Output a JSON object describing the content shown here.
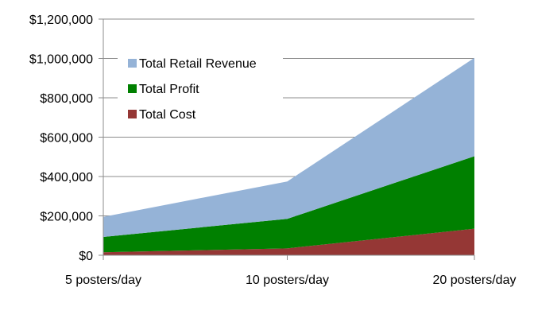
{
  "chart_data": {
    "type": "area",
    "stacked": true,
    "title": "",
    "xlabel": "",
    "ylabel": "",
    "categories": [
      "5 posters/day",
      "10 posters/day",
      "20 posters/day"
    ],
    "ylim": [
      0,
      1200000
    ],
    "yticks": [
      0,
      200000,
      400000,
      600000,
      800000,
      1000000,
      1200000
    ],
    "ytick_labels": [
      "$0",
      "$200,000",
      "$400,000",
      "$600,000",
      "$800,000",
      "$1,000,000",
      "$1,200,000"
    ],
    "grid": true,
    "legend_position": "top-left",
    "series": [
      {
        "name": "Total Cost",
        "values": [
          15000,
          35000,
          135000
        ],
        "color": "#953735"
      },
      {
        "name": "Total Profit",
        "values": [
          78000,
          150000,
          368000
        ],
        "color": "#008000"
      },
      {
        "name": "Total Retail Revenue",
        "values": [
          102000,
          190000,
          500000
        ],
        "color": "#95b3d7"
      }
    ],
    "legend_order": [
      "Total Retail Revenue",
      "Total Profit",
      "Total Cost"
    ]
  }
}
